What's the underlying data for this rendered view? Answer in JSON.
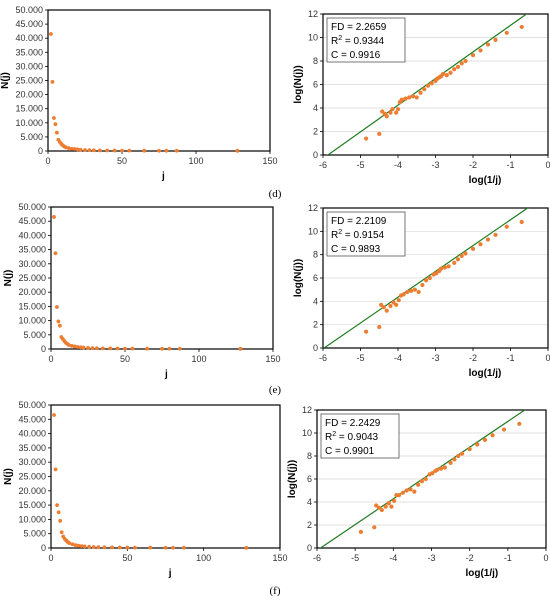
{
  "panels": [
    {
      "label": "(d)"
    },
    {
      "label": "(e)"
    },
    {
      "label": "(f)"
    }
  ],
  "colors": {
    "points": "#ED7D31",
    "fit_line": "#1E7B1E",
    "frame": "#000000",
    "grid": "#D9D9D9"
  },
  "chart_data": [
    {
      "id": "d-left",
      "type": "scatter",
      "xlabel": "j",
      "ylabel": "N(j)",
      "xlim": [
        0,
        150
      ],
      "ylim": [
        0,
        50000
      ],
      "xticks": [
        "0",
        "50",
        "100",
        "150"
      ],
      "yticks": [
        "0",
        "5.000",
        "10.000",
        "15.000",
        "20.000",
        "25.000",
        "30.000",
        "35.000",
        "40.000",
        "45.000",
        "50.000"
      ],
      "points": [
        [
          2,
          41500
        ],
        [
          3,
          24500
        ],
        [
          4,
          11700
        ],
        [
          5,
          9500
        ],
        [
          6,
          6500
        ],
        [
          7,
          4000
        ],
        [
          8,
          3200
        ],
        [
          9,
          2500
        ],
        [
          10,
          2000
        ],
        [
          11,
          1600
        ],
        [
          12,
          1300
        ],
        [
          14,
          1000
        ],
        [
          16,
          800
        ],
        [
          18,
          700
        ],
        [
          20,
          550
        ],
        [
          22,
          450
        ],
        [
          25,
          350
        ],
        [
          28,
          300
        ],
        [
          31,
          250
        ],
        [
          35,
          200
        ],
        [
          40,
          180
        ],
        [
          45,
          150
        ],
        [
          50,
          130
        ],
        [
          55,
          120
        ],
        [
          65,
          110
        ],
        [
          75,
          100
        ],
        [
          80,
          95
        ],
        [
          87,
          90
        ],
        [
          128,
          60
        ]
      ]
    },
    {
      "id": "d-right",
      "type": "scatter",
      "xlabel": "log(1/j)",
      "ylabel": "log(N(j))",
      "xlim": [
        -6,
        0
      ],
      "ylim": [
        0,
        12
      ],
      "xticks": [
        "-6",
        "-5",
        "-4",
        "-3",
        "-2",
        "-1",
        "0"
      ],
      "yticks": [
        "0",
        "2",
        "4",
        "6",
        "8",
        "10",
        "12"
      ],
      "stats": [
        "FD = 2.2659",
        "R",
        "2",
        " = 0.9344",
        "C = 0.9916"
      ],
      "fit": {
        "slope": 2.2659,
        "intercept": 13.3
      },
      "points": [
        [
          -4.85,
          1.4
        ],
        [
          -4.5,
          1.8
        ],
        [
          -4.42,
          3.7
        ],
        [
          -4.35,
          3.5
        ],
        [
          -4.3,
          3.3
        ],
        [
          -4.2,
          3.6
        ],
        [
          -4.15,
          3.9
        ],
        [
          -4.05,
          3.6
        ],
        [
          -4.0,
          3.9
        ],
        [
          -3.95,
          4.5
        ],
        [
          -3.9,
          4.7
        ],
        [
          -3.8,
          4.8
        ],
        [
          -3.7,
          4.9
        ],
        [
          -3.6,
          5.0
        ],
        [
          -3.5,
          4.9
        ],
        [
          -3.4,
          5.3
        ],
        [
          -3.3,
          5.6
        ],
        [
          -3.2,
          5.9
        ],
        [
          -3.1,
          6.1
        ],
        [
          -3.0,
          6.3
        ],
        [
          -2.95,
          6.5
        ],
        [
          -2.9,
          6.6
        ],
        [
          -2.85,
          6.7
        ],
        [
          -2.8,
          6.9
        ],
        [
          -2.7,
          6.8
        ],
        [
          -2.6,
          7.0
        ],
        [
          -2.5,
          7.3
        ],
        [
          -2.4,
          7.5
        ],
        [
          -2.3,
          7.8
        ],
        [
          -2.2,
          8.0
        ],
        [
          -2.0,
          8.5
        ],
        [
          -1.8,
          8.9
        ],
        [
          -1.6,
          9.4
        ],
        [
          -1.4,
          9.8
        ],
        [
          -1.1,
          10.4
        ],
        [
          -0.7,
          10.9
        ]
      ]
    },
    {
      "id": "e-left",
      "type": "scatter",
      "xlabel": "j",
      "ylabel": "N(j)",
      "xlim": [
        0,
        150
      ],
      "ylim": [
        0,
        50000
      ],
      "xticks": [
        "0",
        "50",
        "100",
        "150"
      ],
      "yticks": [
        "0",
        "5.000",
        "10.000",
        "15.000",
        "20.000",
        "25.000",
        "30.000",
        "35.000",
        "40.000",
        "45.000",
        "50.000"
      ],
      "points": [
        [
          2,
          46500
        ],
        [
          3,
          33700
        ],
        [
          4,
          14800
        ],
        [
          5,
          9700
        ],
        [
          6,
          8200
        ],
        [
          7,
          4200
        ],
        [
          8,
          3500
        ],
        [
          9,
          2800
        ],
        [
          10,
          2200
        ],
        [
          11,
          1800
        ],
        [
          12,
          1400
        ],
        [
          14,
          1100
        ],
        [
          16,
          900
        ],
        [
          18,
          700
        ],
        [
          20,
          600
        ],
        [
          22,
          500
        ],
        [
          25,
          400
        ],
        [
          28,
          320
        ],
        [
          31,
          260
        ],
        [
          35,
          220
        ],
        [
          40,
          190
        ],
        [
          45,
          160
        ],
        [
          50,
          140
        ],
        [
          55,
          120
        ],
        [
          65,
          110
        ],
        [
          75,
          100
        ],
        [
          80,
          95
        ],
        [
          87,
          90
        ],
        [
          128,
          60
        ]
      ]
    },
    {
      "id": "e-right",
      "type": "scatter",
      "xlabel": "log(1/j)",
      "ylabel": "log(N(j))",
      "xlim": [
        -6,
        0
      ],
      "ylim": [
        0,
        12
      ],
      "xticks": [
        "-6",
        "-5",
        "-4",
        "-3",
        "-2",
        "-1",
        "0"
      ],
      "yticks": [
        "0",
        "2",
        "4",
        "6",
        "8",
        "10",
        "12"
      ],
      "stats": [
        "FD = 2.2109",
        "R",
        "2",
        " = 0.9154",
        "C = 0.9893"
      ],
      "fit": {
        "slope": 2.2109,
        "intercept": 13.2
      },
      "points": [
        [
          -4.85,
          1.4
        ],
        [
          -4.5,
          1.8
        ],
        [
          -4.45,
          3.7
        ],
        [
          -4.38,
          3.5
        ],
        [
          -4.3,
          3.2
        ],
        [
          -4.2,
          3.6
        ],
        [
          -4.12,
          3.9
        ],
        [
          -4.05,
          3.7
        ],
        [
          -3.98,
          4.1
        ],
        [
          -3.92,
          4.5
        ],
        [
          -3.85,
          4.6
        ],
        [
          -3.75,
          4.8
        ],
        [
          -3.65,
          4.9
        ],
        [
          -3.55,
          5.0
        ],
        [
          -3.45,
          4.8
        ],
        [
          -3.35,
          5.4
        ],
        [
          -3.25,
          5.8
        ],
        [
          -3.15,
          6.0
        ],
        [
          -3.05,
          6.3
        ],
        [
          -2.98,
          6.4
        ],
        [
          -2.9,
          6.6
        ],
        [
          -2.85,
          6.8
        ],
        [
          -2.75,
          6.9
        ],
        [
          -2.65,
          7.0
        ],
        [
          -2.5,
          7.3
        ],
        [
          -2.4,
          7.6
        ],
        [
          -2.3,
          7.9
        ],
        [
          -2.2,
          8.1
        ],
        [
          -2.0,
          8.5
        ],
        [
          -1.8,
          8.9
        ],
        [
          -1.6,
          9.3
        ],
        [
          -1.4,
          9.7
        ],
        [
          -1.1,
          10.4
        ],
        [
          -0.7,
          10.8
        ]
      ]
    },
    {
      "id": "f-left",
      "type": "scatter",
      "xlabel": "j",
      "ylabel": "N(j)",
      "xlim": [
        0,
        150
      ],
      "ylim": [
        0,
        50000
      ],
      "xticks": [
        "0",
        "50",
        "100",
        "150"
      ],
      "yticks": [
        "0",
        "5.000",
        "10.000",
        "15.000",
        "20.000",
        "25.000",
        "30.000",
        "35.000",
        "40.000",
        "45.000",
        "50.000"
      ],
      "points": [
        [
          2,
          46500
        ],
        [
          3,
          27500
        ],
        [
          4,
          15000
        ],
        [
          5,
          12500
        ],
        [
          6,
          9500
        ],
        [
          7,
          5500
        ],
        [
          8,
          4000
        ],
        [
          9,
          3200
        ],
        [
          10,
          2600
        ],
        [
          11,
          2100
        ],
        [
          12,
          1700
        ],
        [
          14,
          1300
        ],
        [
          16,
          1000
        ],
        [
          18,
          800
        ],
        [
          20,
          650
        ],
        [
          22,
          550
        ],
        [
          25,
          430
        ],
        [
          28,
          350
        ],
        [
          31,
          290
        ],
        [
          35,
          240
        ],
        [
          40,
          200
        ],
        [
          45,
          170
        ],
        [
          50,
          150
        ],
        [
          55,
          130
        ],
        [
          65,
          110
        ],
        [
          75,
          100
        ],
        [
          80,
          95
        ],
        [
          87,
          90
        ],
        [
          128,
          60
        ]
      ]
    },
    {
      "id": "f-right",
      "type": "scatter",
      "xlabel": "log(1/j)",
      "ylabel": "log(N(j))",
      "xlim": [
        -6,
        0
      ],
      "ylim": [
        0,
        12
      ],
      "xticks": [
        "-6",
        "-5",
        "-4",
        "-3",
        "-2",
        "-1",
        "0"
      ],
      "yticks": [
        "0",
        "2",
        "4",
        "6",
        "8",
        "10",
        "12"
      ],
      "stats": [
        "FD = 2.2429",
        "R",
        "2",
        " = 0.9043",
        "C = 0.9901"
      ],
      "fit": {
        "slope": 2.2429,
        "intercept": 13.25
      },
      "points": [
        [
          -4.85,
          1.4
        ],
        [
          -4.5,
          1.8
        ],
        [
          -4.45,
          3.7
        ],
        [
          -4.38,
          3.5
        ],
        [
          -4.3,
          3.3
        ],
        [
          -4.2,
          3.6
        ],
        [
          -4.12,
          3.9
        ],
        [
          -4.05,
          3.6
        ],
        [
          -3.98,
          4.1
        ],
        [
          -3.92,
          4.6
        ],
        [
          -3.85,
          4.6
        ],
        [
          -3.75,
          4.8
        ],
        [
          -3.65,
          5.0
        ],
        [
          -3.55,
          5.1
        ],
        [
          -3.45,
          4.9
        ],
        [
          -3.35,
          5.5
        ],
        [
          -3.25,
          5.8
        ],
        [
          -3.15,
          6.0
        ],
        [
          -3.05,
          6.4
        ],
        [
          -2.98,
          6.5
        ],
        [
          -2.9,
          6.7
        ],
        [
          -2.85,
          6.8
        ],
        [
          -2.75,
          6.9
        ],
        [
          -2.65,
          7.0
        ],
        [
          -2.5,
          7.4
        ],
        [
          -2.4,
          7.7
        ],
        [
          -2.3,
          8.0
        ],
        [
          -2.2,
          8.2
        ],
        [
          -2.0,
          8.6
        ],
        [
          -1.8,
          9.0
        ],
        [
          -1.6,
          9.4
        ],
        [
          -1.4,
          9.8
        ],
        [
          -1.1,
          10.3
        ],
        [
          -0.7,
          10.8
        ]
      ]
    }
  ]
}
